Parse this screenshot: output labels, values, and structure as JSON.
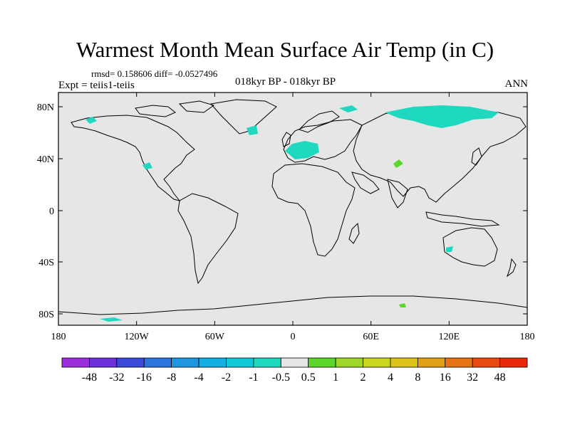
{
  "title": "Warmest Month Mean Surface Air Temp (in C)",
  "stats_line": "rmsd= 0.158606 diff= -0.0527496",
  "expt_label": "Expt = teiis1-teiis",
  "center_label": "018kyr BP - 018kyr BP",
  "season_label": "ANN",
  "map": {
    "lat_ticks": [
      "80N",
      "40N",
      "0",
      "40S",
      "80S"
    ],
    "lon_ticks": [
      "180",
      "120W",
      "60W",
      "0",
      "60E",
      "120E",
      "180"
    ],
    "background_color": "#e6e6e6",
    "coastline_color": "#000000"
  },
  "colorbar": {
    "labels": [
      "-48",
      "-32",
      "-16",
      "-8",
      "-4",
      "-2",
      "-1",
      "-0.5",
      "0.5",
      "1",
      "2",
      "4",
      "8",
      "16",
      "32",
      "48"
    ],
    "colors": [
      "#9a2ed8",
      "#6a32d6",
      "#3a4ad6",
      "#2a74dc",
      "#1f96e0",
      "#14b0e4",
      "#0fc8d8",
      "#1ed8c0",
      "#e6e6e6",
      "#5cd62a",
      "#9ed62a",
      "#c8d61e",
      "#dcc41a",
      "#e0a018",
      "#e47414",
      "#e84a10",
      "#e82a0a"
    ]
  }
}
